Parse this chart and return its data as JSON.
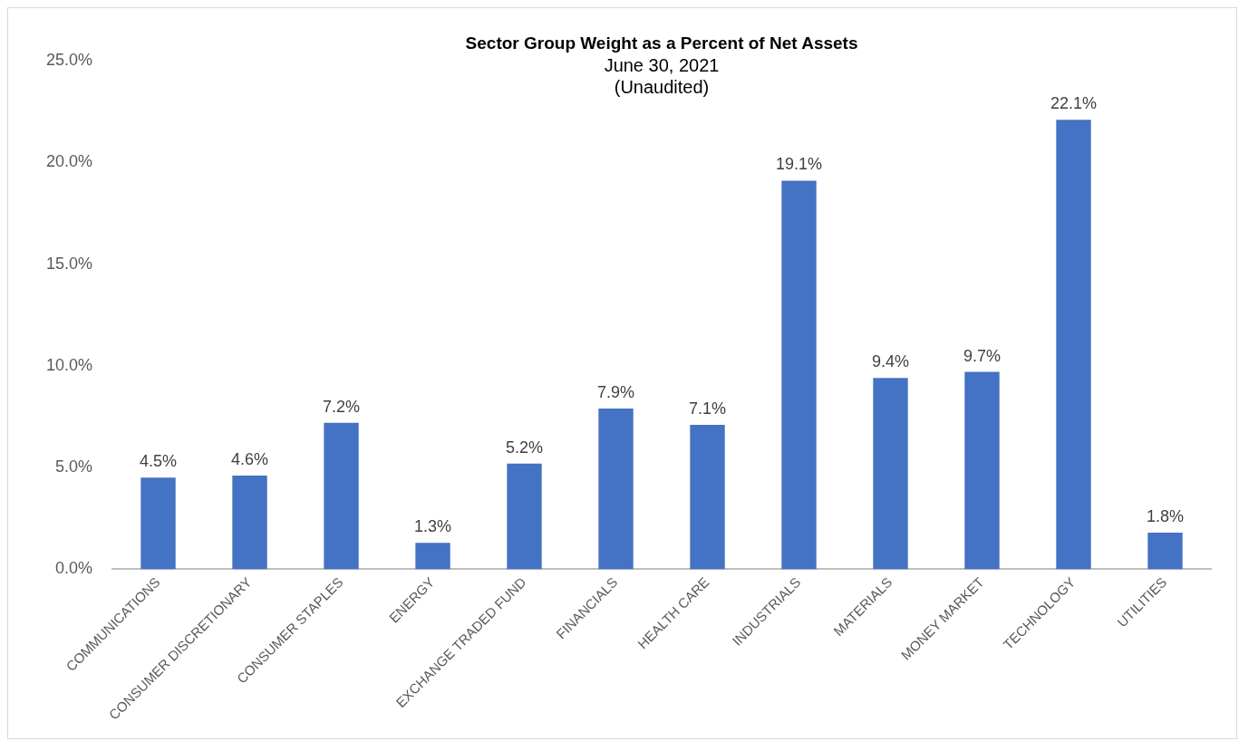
{
  "chart_data": {
    "type": "bar",
    "title": "Sector Group Weight as a Percent of Net Assets",
    "subtitle": "June 30, 2021\n(Unaudited)",
    "categories": [
      "COMMUNICATIONS",
      "CONSUMER DISCRETIONARY",
      "CONSUMER STAPLES",
      "ENERGY",
      "EXCHANGE TRADED FUND",
      "FINANCIALS",
      "HEALTH CARE",
      "INDUSTRIALS",
      "MATERIALS",
      "MONEY MARKET",
      "TECHNOLOGY",
      "UTILITIES"
    ],
    "values": [
      4.5,
      4.6,
      7.2,
      1.3,
      5.2,
      7.9,
      7.1,
      19.1,
      9.4,
      9.7,
      22.1,
      1.8
    ],
    "value_labels": [
      "4.5%",
      "4.6%",
      "7.2%",
      "1.3%",
      "5.2%",
      "7.9%",
      "7.1%",
      "19.1%",
      "9.4%",
      "9.7%",
      "22.1%",
      "1.8%"
    ],
    "color": "#4472c4",
    "ylim": [
      0,
      25
    ],
    "yticks": [
      {
        "value": 0,
        "label": "0.0%"
      },
      {
        "value": 5,
        "label": "5.0%"
      },
      {
        "value": 10,
        "label": "10.0%"
      },
      {
        "value": 15,
        "label": "15.0%"
      },
      {
        "value": 20,
        "label": "20.0%"
      },
      {
        "value": 25,
        "label": "25.0%"
      }
    ],
    "grid": false,
    "legend": false
  }
}
